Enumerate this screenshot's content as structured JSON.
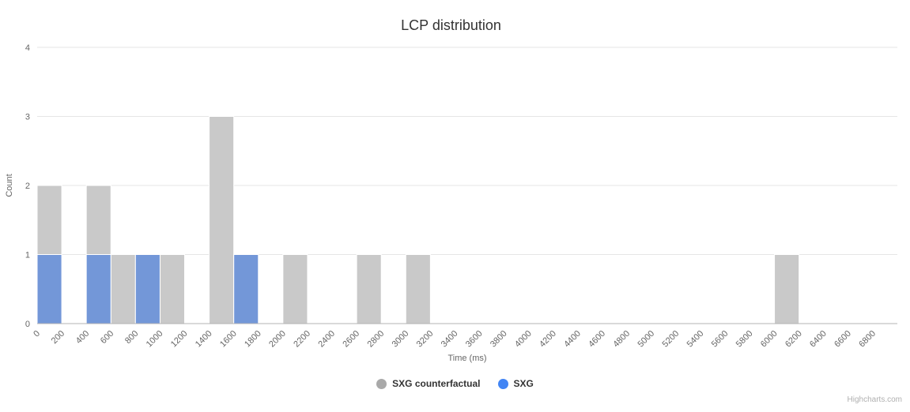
{
  "chart_data": {
    "type": "bar",
    "title": "LCP distribution",
    "xlabel": "Time (ms)",
    "ylabel": "Count",
    "xlim": [
      0,
      7000
    ],
    "ylim": [
      0,
      4
    ],
    "bin_width_ms": 200,
    "grid": "horizontal",
    "legend_position": "bottom-center",
    "x_ticks": [
      0,
      200,
      400,
      600,
      800,
      1000,
      1200,
      1400,
      1600,
      1800,
      2000,
      2200,
      2400,
      2600,
      2800,
      3000,
      3200,
      3400,
      3600,
      3800,
      4000,
      4200,
      4400,
      4600,
      4800,
      5000,
      5200,
      5400,
      5600,
      5800,
      6000,
      6200,
      6400,
      6600,
      6800
    ],
    "y_ticks": [
      0,
      1,
      2,
      3,
      4
    ],
    "colors": {
      "background": "#ffffff",
      "grid": "#e6e6e6",
      "axis_line": "#b3b3b3",
      "tick_label": "#666666",
      "axis_title": "#666666",
      "title_text": "#333333",
      "legend_text": "#333333",
      "credit_text": "#b0b0b0",
      "bar_border": "#ffffff"
    },
    "series": [
      {
        "name": "SXG counterfactual",
        "color": "#c9c9c9",
        "marker_color": "#a9a9a9",
        "points": [
          {
            "x": 0,
            "count": 2
          },
          {
            "x": 400,
            "count": 2
          },
          {
            "x": 600,
            "count": 1
          },
          {
            "x": 1000,
            "count": 1
          },
          {
            "x": 1400,
            "count": 3
          },
          {
            "x": 2000,
            "count": 1
          },
          {
            "x": 2600,
            "count": 1
          },
          {
            "x": 3000,
            "count": 1
          },
          {
            "x": 6000,
            "count": 1
          }
        ]
      },
      {
        "name": "SXG",
        "color": "#7397d8",
        "marker_color": "#4285f4",
        "points": [
          {
            "x": 0,
            "count": 1
          },
          {
            "x": 400,
            "count": 1
          },
          {
            "x": 800,
            "count": 1
          },
          {
            "x": 1600,
            "count": 1
          }
        ]
      }
    ]
  },
  "credit": "Highcharts.com"
}
